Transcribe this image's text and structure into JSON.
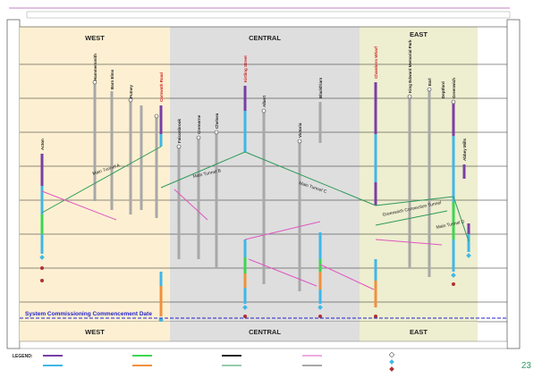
{
  "regions": {
    "west": "WEST",
    "central": "CENTRAL",
    "east": "EAST"
  },
  "footer_text": "System Commissioning Commencement Date",
  "legend_title": "LEGEND:",
  "page_number": "23",
  "tunnel_labels": {
    "main_a": "Main Tunnel A",
    "main_b": "Main Tunnel B",
    "main_c": "Main Tunnel C",
    "main_d": "Main Tunnel D",
    "connection": "Greenwich Connection Tunnel"
  },
  "site_labels": {
    "w1": "Acton",
    "w2": "Hammersmith",
    "w3": "Barn Elms",
    "w4": "Putney",
    "w5": "Carnwath Road",
    "c1": "Kirtling Street",
    "c2": "Falconbrook",
    "c3": "Cremorne",
    "c4": "Chelsea",
    "c5": "Albert",
    "c6": "Victoria",
    "c7": "Blackfriars",
    "e1": "Chambers Wharf",
    "e2": "King Edward Memorial Park",
    "e3": "Earl",
    "e4": "Deptford",
    "e5": "Greenwich",
    "e6": "Abbey Mills"
  },
  "colors": {
    "west_band": "#fdf0d2",
    "central_band": "#dedede",
    "east_band": "#eeeed0",
    "shaft": "#7a3ea6",
    "secondary": "#3fb7e8",
    "green": "#3cd651",
    "orange": "#f0903c",
    "grey_line": "#a8a8a8",
    "red_label": "#d02020",
    "tunnel_line": "#2f9a5a",
    "pink": "#e056c0",
    "commission": "#2222cc",
    "dark": "#222222"
  }
}
